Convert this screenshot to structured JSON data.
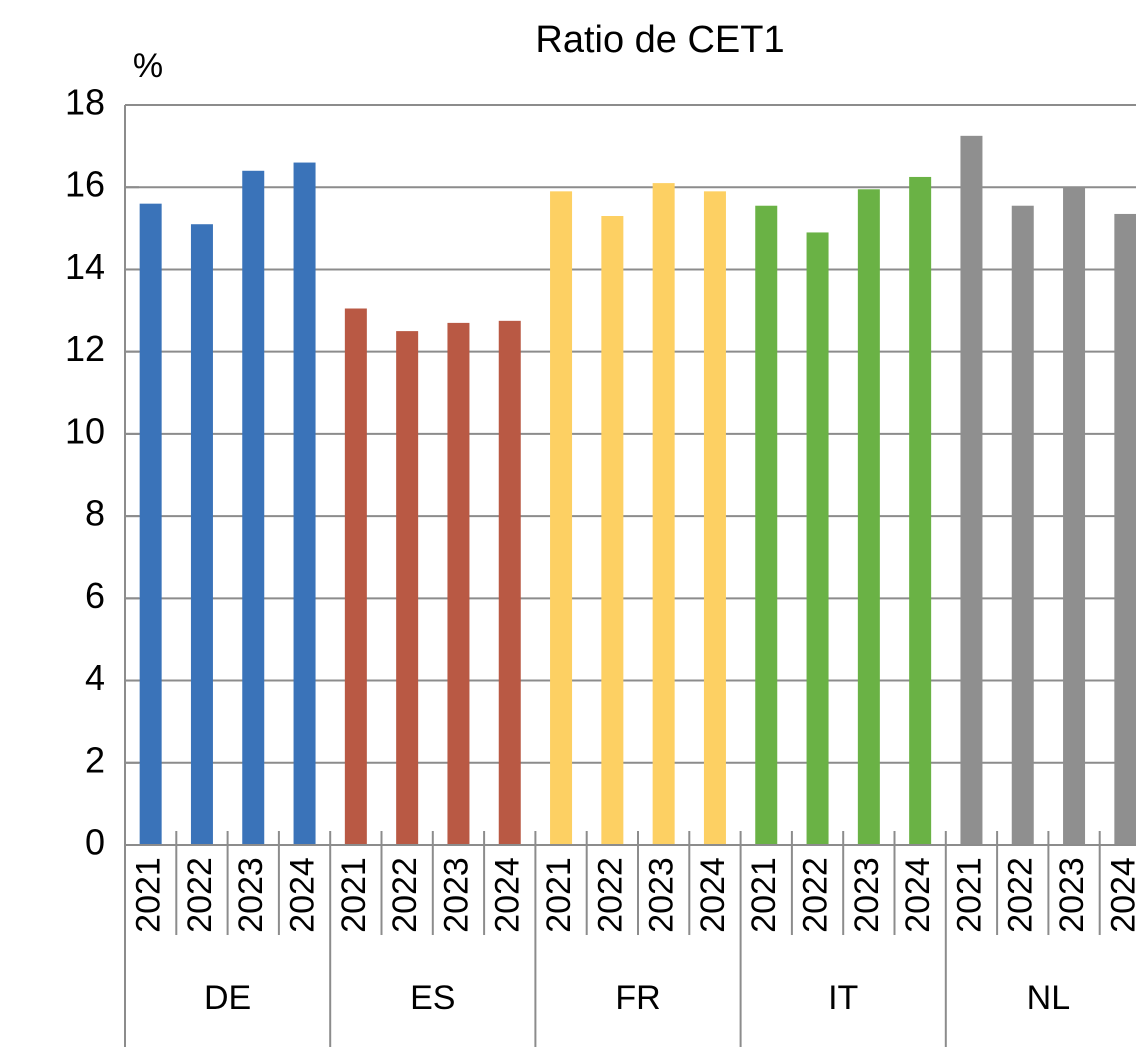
{
  "chart_data": {
    "type": "bar",
    "title": "Ratio de CET1",
    "y_label": "%",
    "groups": [
      {
        "name": "DE",
        "color": "#3a73b9",
        "categories": [
          "2021",
          "2022",
          "2023",
          "2024"
        ],
        "values": [
          15.6,
          15.1,
          16.4,
          16.6
        ]
      },
      {
        "name": "ES",
        "color": "#b95944",
        "categories": [
          "2021",
          "2022",
          "2023",
          "2024"
        ],
        "values": [
          13.05,
          12.5,
          12.7,
          12.75
        ]
      },
      {
        "name": "FR",
        "color": "#fdd063",
        "categories": [
          "2021",
          "2022",
          "2023",
          "2024"
        ],
        "values": [
          15.9,
          15.3,
          16.1,
          15.9
        ]
      },
      {
        "name": "IT",
        "color": "#6ab245",
        "categories": [
          "2021",
          "2022",
          "2023",
          "2024"
        ],
        "values": [
          15.55,
          14.9,
          15.95,
          16.25
        ]
      },
      {
        "name": "NL",
        "color": "#8f8f8f",
        "categories": [
          "2021",
          "2022",
          "2023",
          "2024"
        ],
        "values": [
          17.25,
          15.55,
          16.0,
          15.35
        ]
      }
    ],
    "ylim": [
      0,
      18
    ],
    "yticks": [
      0,
      2,
      4,
      6,
      8,
      10,
      12,
      14,
      16,
      18
    ],
    "grid": true
  }
}
